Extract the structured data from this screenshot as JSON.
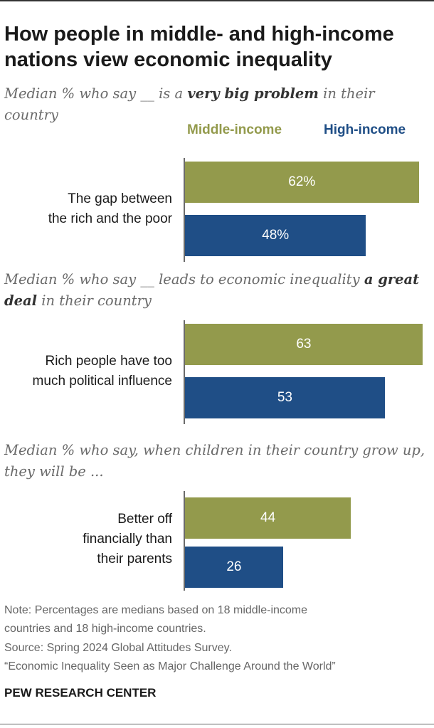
{
  "title_line1": "How people in middle- and high-income",
  "title_line2": "nations view economic inequality",
  "colors": {
    "middle": "#939A4C",
    "high": "#1F4E86"
  },
  "legend": {
    "middle": "Middle-income",
    "high": "High-income"
  },
  "chart_data": {
    "type": "bar",
    "orientation": "horizontal",
    "series": [
      {
        "name": "Middle-income",
        "values": [
          62,
          63,
          44
        ]
      },
      {
        "name": "High-income",
        "values": [
          48,
          53,
          26
        ]
      }
    ],
    "panels": [
      {
        "subtitle_pre": "Median % who say __ is a ",
        "subtitle_bold": "very big problem",
        "subtitle_post": " in their country",
        "label_lines": [
          "The gap between",
          "the rich and the poor"
        ],
        "values": [
          62,
          48
        ],
        "value_labels": [
          "62%",
          "48%"
        ]
      },
      {
        "subtitle_pre": "Median % who say __ leads to economic inequality ",
        "subtitle_bold": "a great deal",
        "subtitle_post": " in their country",
        "label_lines": [
          "Rich people have too",
          "much political influence"
        ],
        "values": [
          63,
          53
        ],
        "value_labels": [
          "63",
          "53"
        ]
      },
      {
        "subtitle_pre": "Median % who say, when children in their country grow up, they will be ...",
        "subtitle_bold": "",
        "subtitle_post": "",
        "label_lines": [
          "Better off",
          "financially than",
          "their parents"
        ],
        "values": [
          44,
          26
        ],
        "value_labels": [
          "44",
          "26"
        ]
      }
    ]
  },
  "notes": [
    "Note: Percentages are medians based on 18 middle-income",
    "countries and 18 high-income countries.",
    "Source: Spring 2024 Global Attitudes Survey.",
    "“Economic Inequality Seen as Major Challenge Around the World”"
  ],
  "brand": "PEW RESEARCH CENTER"
}
